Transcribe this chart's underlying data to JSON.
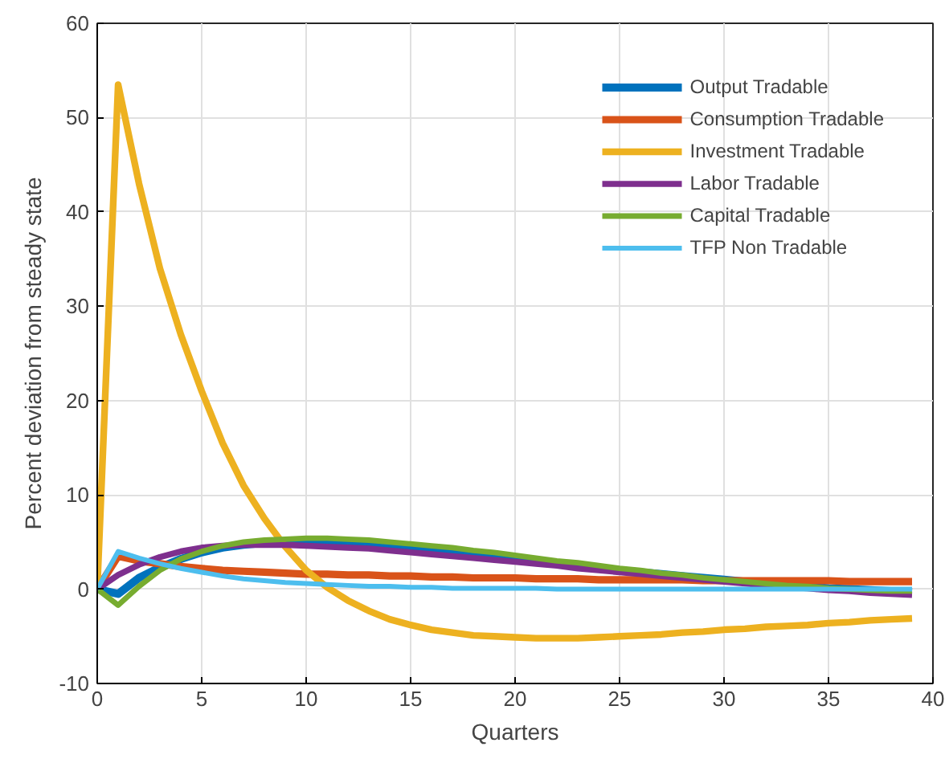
{
  "chart_data": {
    "type": "line",
    "xlabel": "Quarters",
    "ylabel": "Percent deviation from steady state",
    "x": [
      0,
      1,
      2,
      3,
      4,
      5,
      6,
      7,
      8,
      9,
      10,
      11,
      12,
      13,
      14,
      15,
      16,
      17,
      18,
      19,
      20,
      21,
      22,
      23,
      24,
      25,
      26,
      27,
      28,
      29,
      30,
      31,
      32,
      33,
      34,
      35,
      36,
      37,
      38,
      39
    ],
    "xlim": [
      0,
      40
    ],
    "ylim": [
      -10,
      60
    ],
    "xticks": [
      0,
      5,
      10,
      15,
      20,
      25,
      30,
      35,
      40
    ],
    "yticks": [
      -10,
      0,
      10,
      20,
      30,
      40,
      50,
      60
    ],
    "grid": true,
    "legend": "top right",
    "line_style": "solid",
    "series": [
      {
        "name": "Output Tradable",
        "color": "#0072bd",
        "values": [
          0,
          -0.5,
          1.2,
          2.3,
          3.2,
          3.9,
          4.4,
          4.7,
          4.9,
          5.0,
          5.0,
          4.9,
          4.8,
          4.7,
          4.5,
          4.3,
          4.1,
          3.9,
          3.7,
          3.4,
          3.2,
          3.0,
          2.7,
          2.5,
          2.2,
          2.0,
          1.8,
          1.6,
          1.4,
          1.2,
          1.0,
          0.8,
          0.6,
          0.4,
          0.3,
          0.1,
          0.0,
          -0.1,
          -0.2,
          -0.3
        ]
      },
      {
        "name": "Consumption Tradable",
        "color": "#d95319",
        "values": [
          0,
          3.5,
          3.0,
          2.7,
          2.4,
          2.2,
          2.0,
          1.9,
          1.8,
          1.7,
          1.6,
          1.6,
          1.5,
          1.5,
          1.4,
          1.4,
          1.3,
          1.3,
          1.2,
          1.2,
          1.2,
          1.1,
          1.1,
          1.1,
          1.0,
          1.0,
          1.0,
          1.0,
          1.0,
          0.9,
          0.9,
          0.9,
          0.9,
          0.9,
          0.9,
          0.9,
          0.8,
          0.8,
          0.8,
          0.8
        ]
      },
      {
        "name": "Investment Tradable",
        "color": "#edb120",
        "values": [
          0,
          53.5,
          43,
          34,
          27,
          21,
          15.5,
          11,
          7.5,
          4.5,
          2,
          0.2,
          -1.2,
          -2.3,
          -3.2,
          -3.8,
          -4.3,
          -4.6,
          -4.9,
          -5.0,
          -5.1,
          -5.2,
          -5.2,
          -5.2,
          -5.1,
          -5.0,
          -4.9,
          -4.8,
          -4.6,
          -4.5,
          -4.3,
          -4.2,
          -4.0,
          -3.9,
          -3.8,
          -3.6,
          -3.5,
          -3.3,
          -3.2,
          -3.1
        ]
      },
      {
        "name": "Labor Tradable",
        "color": "#7e2f8e",
        "values": [
          0,
          1.5,
          2.6,
          3.4,
          4.0,
          4.4,
          4.6,
          4.7,
          4.7,
          4.7,
          4.6,
          4.5,
          4.4,
          4.3,
          4.1,
          3.9,
          3.7,
          3.5,
          3.3,
          3.1,
          2.9,
          2.7,
          2.5,
          2.2,
          2.0,
          1.8,
          1.6,
          1.4,
          1.2,
          1.0,
          0.8,
          0.6,
          0.4,
          0.2,
          0.1,
          -0.1,
          -0.2,
          -0.4,
          -0.5,
          -0.6
        ]
      },
      {
        "name": "Capital Tradable",
        "color": "#77ac30",
        "values": [
          0,
          -1.7,
          0.3,
          2.0,
          3.2,
          4.0,
          4.6,
          5.0,
          5.2,
          5.3,
          5.4,
          5.4,
          5.3,
          5.2,
          5.0,
          4.8,
          4.6,
          4.4,
          4.1,
          3.9,
          3.6,
          3.3,
          3.0,
          2.8,
          2.5,
          2.2,
          2.0,
          1.7,
          1.5,
          1.2,
          1.0,
          0.8,
          0.6,
          0.4,
          0.3,
          0.1,
          0.0,
          -0.1,
          -0.2,
          -0.2
        ]
      },
      {
        "name": "TFP Non Tradable",
        "color": "#4dbeee",
        "values": [
          0,
          4.0,
          3.3,
          2.7,
          2.2,
          1.8,
          1.4,
          1.1,
          0.9,
          0.7,
          0.6,
          0.5,
          0.4,
          0.3,
          0.3,
          0.2,
          0.2,
          0.1,
          0.1,
          0.1,
          0.1,
          0.1,
          0,
          0,
          0,
          0,
          0,
          0,
          0,
          0,
          0,
          0,
          0,
          0,
          0,
          0,
          0,
          0,
          0,
          0
        ]
      }
    ]
  }
}
